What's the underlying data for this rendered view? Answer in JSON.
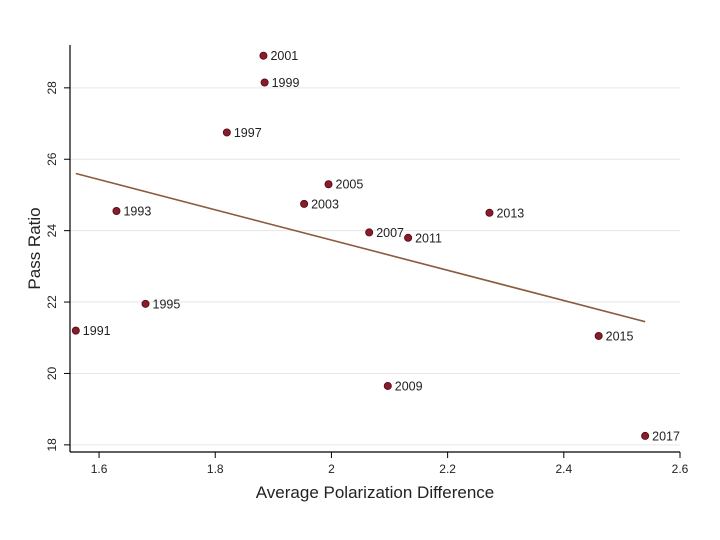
{
  "chart_data": {
    "type": "scatter",
    "title": "",
    "xlabel": "Average Polarization Difference",
    "ylabel": "Pass Ratio",
    "xlim": [
      1.55,
      2.6
    ],
    "ylim": [
      17.8,
      29.2
    ],
    "x_ticks": [
      1.6,
      1.8,
      2,
      2.2,
      2.4,
      2.6
    ],
    "x_tick_labels": [
      "1.6",
      "1.8",
      "2",
      "2.2",
      "2.4",
      "2.6"
    ],
    "y_ticks": [
      18,
      20,
      22,
      24,
      26,
      28
    ],
    "y_tick_labels": [
      "18",
      "20",
      "22",
      "24",
      "26",
      "28"
    ],
    "grid": "horizontal",
    "points": [
      {
        "label": "1991",
        "x": 1.56,
        "y": 21.2
      },
      {
        "label": "1993",
        "x": 1.63,
        "y": 24.55
      },
      {
        "label": "1995",
        "x": 1.68,
        "y": 21.95
      },
      {
        "label": "1997",
        "x": 1.82,
        "y": 26.75
      },
      {
        "label": "1999",
        "x": 1.885,
        "y": 28.15
      },
      {
        "label": "2001",
        "x": 1.883,
        "y": 28.9
      },
      {
        "label": "2003",
        "x": 1.953,
        "y": 24.75
      },
      {
        "label": "2005",
        "x": 1.995,
        "y": 25.3
      },
      {
        "label": "2007",
        "x": 2.065,
        "y": 23.95
      },
      {
        "label": "2009",
        "x": 2.097,
        "y": 19.65
      },
      {
        "label": "2011",
        "x": 2.132,
        "y": 23.8
      },
      {
        "label": "2013",
        "x": 2.272,
        "y": 24.5
      },
      {
        "label": "2015",
        "x": 2.46,
        "y": 21.05
      },
      {
        "label": "2017",
        "x": 2.54,
        "y": 18.25
      }
    ],
    "fit_line": {
      "x": [
        1.56,
        2.54
      ],
      "y": [
        25.6,
        21.45
      ]
    },
    "colors": {
      "marker_fill": "#8b1a2b",
      "marker_stroke": "#4a0d15",
      "fit_line": "#8b5a3c",
      "grid": "#e6e6e6",
      "axis": "#000000",
      "text": "#222222"
    }
  }
}
